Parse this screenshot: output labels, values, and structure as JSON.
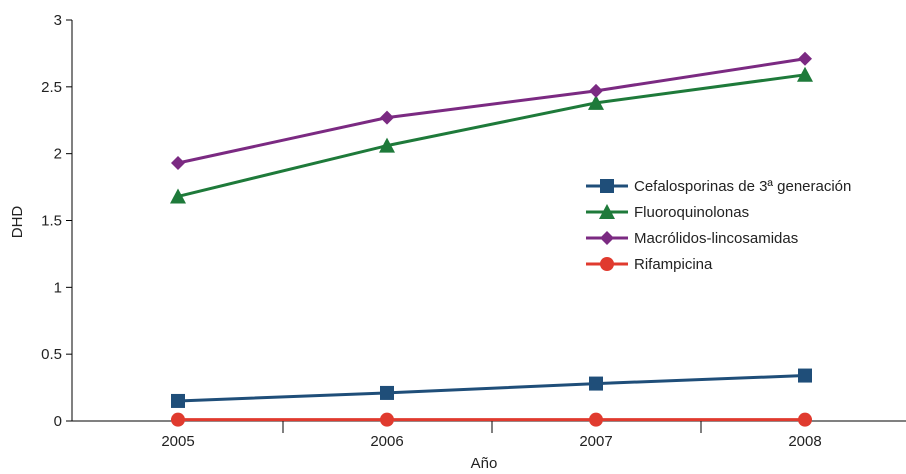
{
  "chart_data": {
    "type": "line",
    "xlabel": "Año",
    "ylabel": "DHD",
    "categories": [
      "2005",
      "2006",
      "2007",
      "2008"
    ],
    "ylim": [
      0,
      3
    ],
    "yticks": [
      "0",
      "0.5",
      "1",
      "1.5",
      "2",
      "2.5",
      "3"
    ],
    "ytick_values": [
      0,
      0.5,
      1,
      1.5,
      2,
      2.5,
      3
    ],
    "grid": false,
    "legend_position": "right",
    "series": [
      {
        "name": "Cefalosporinas de 3ª generación",
        "marker": "square",
        "color": "#1f4e79",
        "values": [
          0.15,
          0.21,
          0.28,
          0.34
        ]
      },
      {
        "name": "Fluoroquinolonas",
        "marker": "triangle",
        "color": "#1e7a3a",
        "values": [
          1.68,
          2.06,
          2.38,
          2.59
        ]
      },
      {
        "name": "Macrólidos-lincosamidas",
        "marker": "diamond",
        "color": "#7b2a82",
        "values": [
          1.93,
          2.27,
          2.47,
          2.71
        ]
      },
      {
        "name": "Rifampicina",
        "marker": "circle",
        "color": "#e03a2e",
        "values": [
          0.01,
          0.01,
          0.01,
          0.01
        ]
      }
    ]
  }
}
